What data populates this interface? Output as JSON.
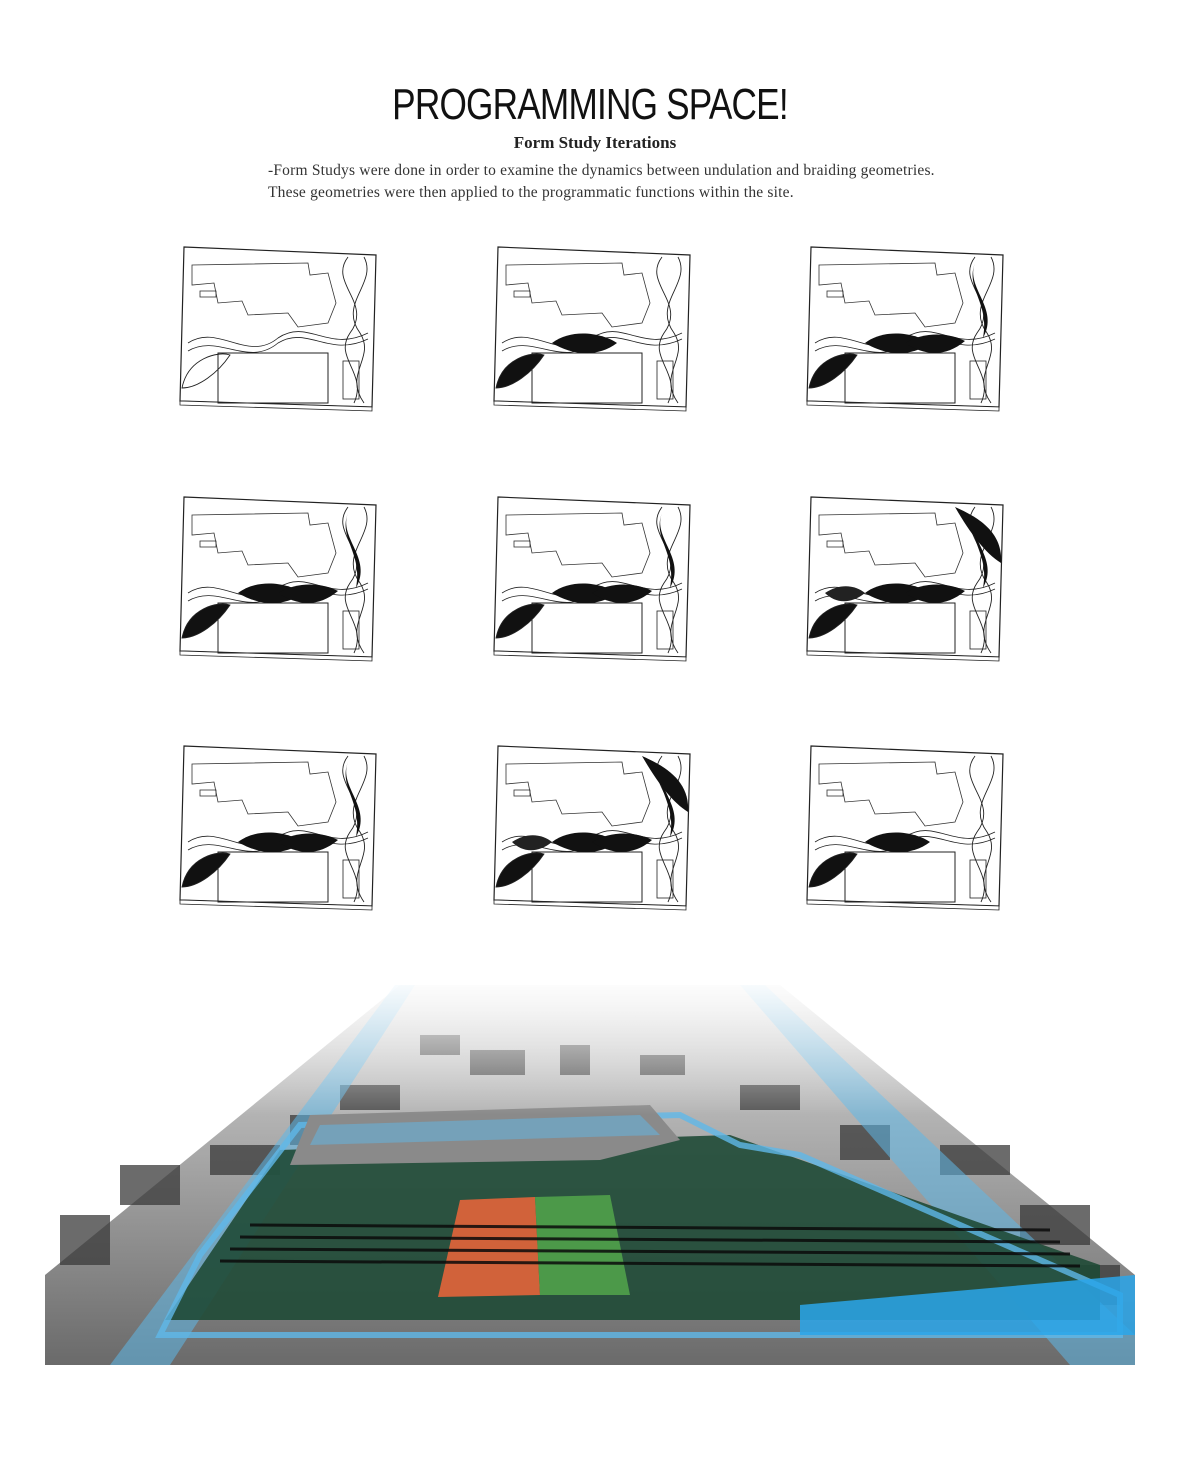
{
  "header": {
    "title": "PROGRAMMING SPACE!",
    "subtitle": "Form Study Iterations",
    "description_lines": [
      "-Form Studys were done in order to examine the dynamics between undulation and braiding geometries.",
      "These geometries were then applied to the programmatic functions within the site."
    ]
  },
  "studies": [
    {
      "id": 1,
      "density": 0
    },
    {
      "id": 2,
      "density": 1
    },
    {
      "id": 3,
      "density": 2
    },
    {
      "id": 4,
      "density": 2
    },
    {
      "id": 5,
      "density": 2
    },
    {
      "id": 6,
      "density": 3
    },
    {
      "id": 7,
      "density": 2
    },
    {
      "id": 8,
      "density": 3
    },
    {
      "id": 9,
      "density": 1
    }
  ],
  "colors": {
    "program_orange": "#e0643a",
    "program_green": "#4fa04a",
    "site_dark_green": "#1f4a36",
    "street_blue": "#5fb8e8",
    "ink": "#111111"
  }
}
